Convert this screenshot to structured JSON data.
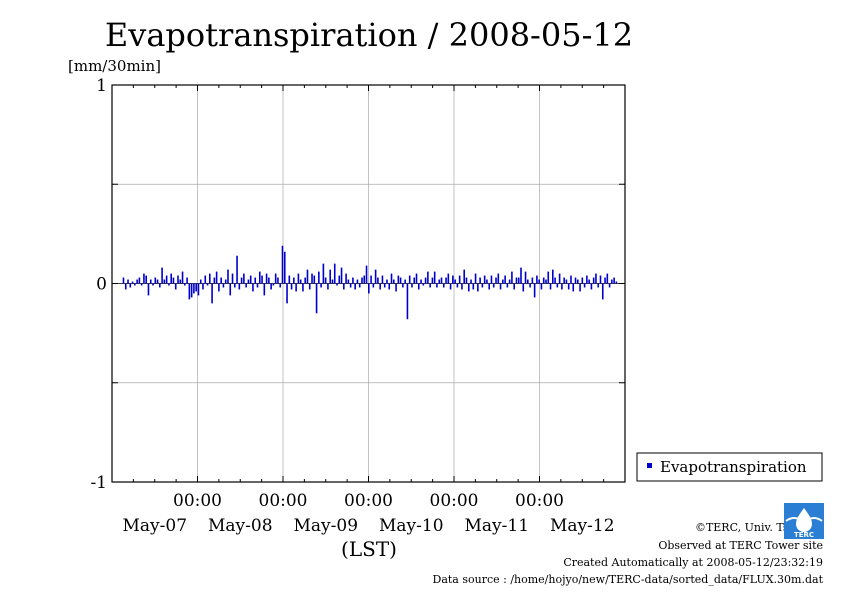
{
  "chart_data": {
    "type": "bar",
    "title": "Evapotranspiration / 2008-05-12",
    "ylabel": "[mm/30min]",
    "xlabel": "(LST)",
    "ylim": [
      -1,
      1
    ],
    "yticks": [
      "1",
      "0",
      "-1"
    ],
    "xtick_times": [
      "00:00",
      "00:00",
      "00:00",
      "00:00",
      "00:00"
    ],
    "xtick_dates": [
      "May-07",
      "May-08",
      "May-09",
      "May-10",
      "May-11",
      "May-12"
    ],
    "grid": true,
    "legend_position": "bottom-right outside",
    "series": [
      {
        "name": "Evapotranspiration",
        "color": "#0000cc",
        "interval": "30min",
        "values": [
          0.03,
          -0.03,
          0.02,
          -0.02,
          0.01,
          -0.01,
          0.02,
          0.03,
          -0.01,
          0.05,
          0.04,
          -0.06,
          0.02,
          -0.01,
          0.03,
          0.02,
          -0.02,
          0.08,
          0.02,
          0.04,
          -0.01,
          0.05,
          0.03,
          -0.03,
          0.04,
          0.02,
          0.06,
          -0.01,
          0.03,
          -0.08,
          -0.07,
          -0.05,
          -0.04,
          -0.06,
          0.02,
          -0.03,
          0.04,
          -0.01,
          0.05,
          -0.1,
          0.03,
          0.06,
          -0.04,
          0.03,
          -0.02,
          0.02,
          0.07,
          -0.06,
          0.05,
          -0.02,
          0.14,
          -0.03,
          0.03,
          0.05,
          -0.02,
          0.02,
          0.04,
          -0.04,
          0.03,
          -0.02,
          0.06,
          0.04,
          -0.06,
          0.05,
          0.03,
          -0.03,
          -0.01,
          0.05,
          0.03,
          -0.02,
          0.19,
          0.16,
          -0.1,
          0.04,
          -0.03,
          0.03,
          -0.04,
          0.05,
          0.02,
          -0.04,
          0.03,
          0.07,
          -0.03,
          0.05,
          0.04,
          -0.15,
          0.06,
          -0.02,
          0.1,
          0.03,
          -0.03,
          0.07,
          0.02,
          0.1,
          -0.01,
          0.04,
          0.08,
          -0.03,
          0.05,
          0.02,
          -0.02,
          0.03,
          -0.03,
          0.02,
          -0.02,
          0.03,
          0.04,
          0.09,
          -0.05,
          0.04,
          -0.02,
          0.07,
          0.03,
          -0.03,
          0.04,
          -0.02,
          0.02,
          -0.03,
          0.05,
          0.02,
          -0.04,
          0.04,
          0.03,
          -0.02,
          0.02,
          -0.18,
          0.04,
          -0.02,
          0.03,
          0.05,
          -0.03,
          0.02,
          -0.01,
          0.03,
          0.06,
          -0.02,
          0.03,
          0.06,
          -0.02,
          0.02,
          0.03,
          -0.02,
          0.03,
          0.05,
          -0.03,
          0.04,
          0.02,
          -0.02,
          0.04,
          -0.03,
          0.07,
          0.03,
          -0.04,
          0.02,
          -0.03,
          0.05,
          -0.04,
          0.03,
          -0.02,
          0.04,
          0.02,
          -0.03,
          0.04,
          -0.02,
          0.03,
          0.05,
          -0.03,
          0.02,
          0.04,
          -0.02,
          0.02,
          0.06,
          -0.03,
          0.03,
          0.03,
          0.08,
          -0.04,
          0.06,
          0.02,
          -0.02,
          0.03,
          -0.07,
          0.04,
          0.02,
          -0.03,
          0.03,
          0.02,
          0.06,
          -0.03,
          0.07,
          0.03,
          -0.02,
          0.05,
          -0.03,
          0.03,
          0.02,
          -0.03,
          0.04,
          -0.04,
          0.03,
          0.02,
          -0.04,
          0.03,
          -0.02,
          0.04,
          0.02,
          -0.03,
          0.03,
          0.05,
          -0.02,
          0.04,
          -0.08,
          0.03,
          0.05,
          -0.02,
          0.02,
          0.03,
          0.01
        ]
      }
    ]
  },
  "footer": {
    "copyright": "©TERC, Univ. Tsukuba",
    "observed": "Observed at TERC Tower site",
    "created": "Created Automatically at 2008-05-12/23:32:19",
    "source": "Data source : /home/hojyo/new/TERC-data/sorted_data/FLUX.30m.dat"
  },
  "logo": {
    "text": "TERC",
    "color": "#2a7fd4"
  }
}
